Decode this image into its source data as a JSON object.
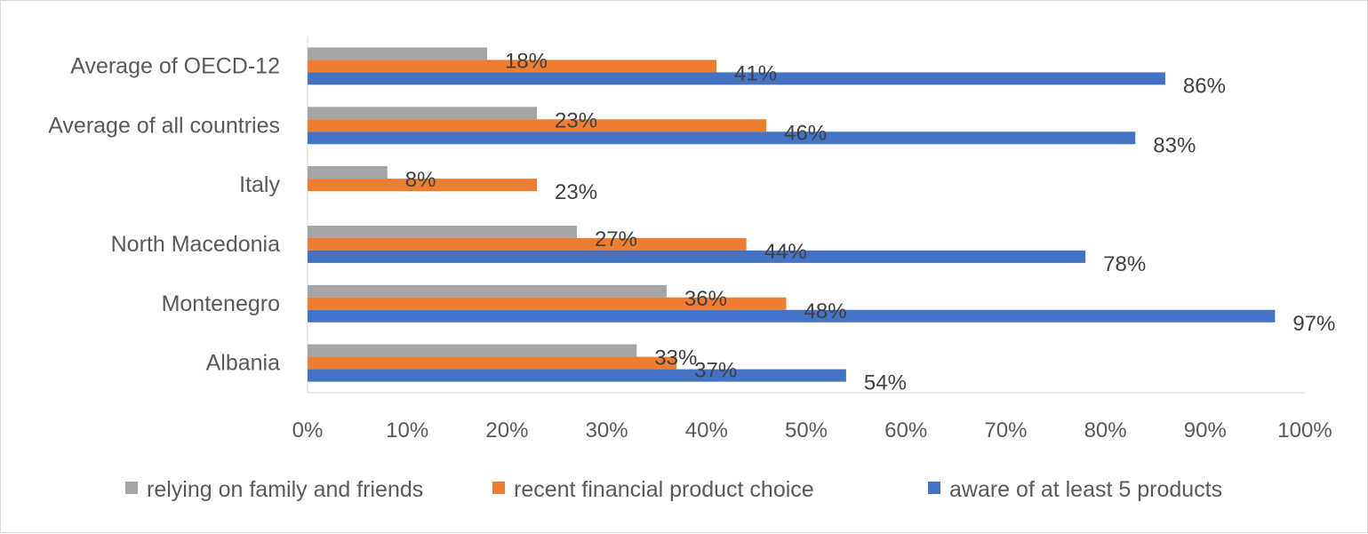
{
  "chart_data": {
    "type": "bar",
    "orientation": "horizontal",
    "categories": [
      "Average of OECD-12",
      "Average of all countries",
      "Italy",
      "North Macedonia",
      "Montenegro",
      "Albania"
    ],
    "series": [
      {
        "name": "relying on family and friends",
        "color": "#a5a5a5",
        "values": [
          18,
          23,
          8,
          27,
          36,
          33
        ],
        "labels": [
          "18%",
          "23%",
          "8%",
          "27%",
          "36%",
          "33%"
        ]
      },
      {
        "name": "recent financial product choice",
        "color": "#ed7d31",
        "values": [
          41,
          46,
          23,
          44,
          48,
          37
        ],
        "labels": [
          "41%",
          "46%",
          "23%",
          "44%",
          "48%",
          "37%"
        ]
      },
      {
        "name": "aware of at least 5 products",
        "color": "#4472c4",
        "values": [
          86,
          83,
          null,
          78,
          97,
          54
        ],
        "labels": [
          "86%",
          "83%",
          "",
          "78%",
          "97%",
          "54%"
        ]
      }
    ],
    "xlim": [
      0,
      100
    ],
    "x_ticks": [
      "0%",
      "10%",
      "20%",
      "30%",
      "40%",
      "50%",
      "60%",
      "70%",
      "80%",
      "90%",
      "100%"
    ],
    "gridlines": false,
    "legend_position": "bottom",
    "title": "",
    "xlabel": "",
    "ylabel": ""
  }
}
